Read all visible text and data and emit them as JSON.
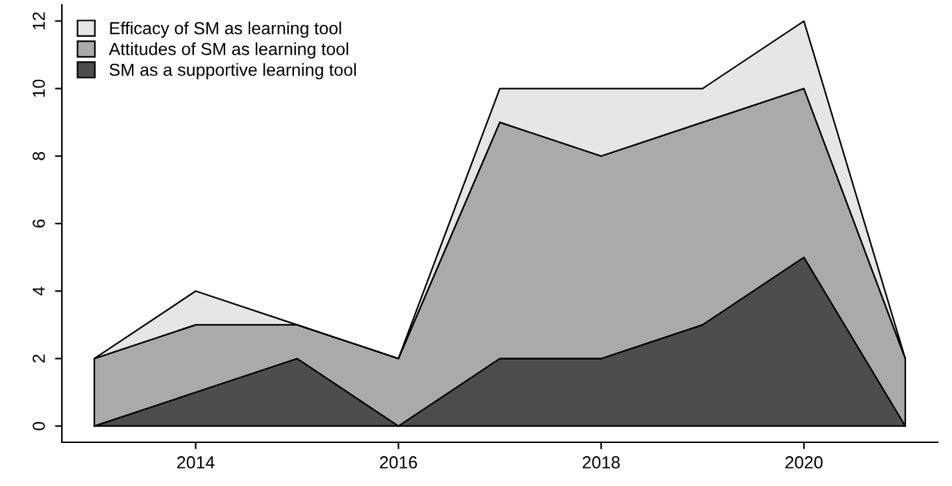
{
  "chart_data": {
    "type": "area",
    "stacked": true,
    "x": [
      2013,
      2014,
      2015,
      2016,
      2017,
      2018,
      2019,
      2020,
      2021
    ],
    "series": [
      {
        "name": "SM as a supportive learning tool",
        "color": "#4d4d4d",
        "values": [
          0,
          1,
          2,
          0,
          2,
          2,
          3,
          5,
          0
        ]
      },
      {
        "name": "Attitudes of SM as learning tool",
        "color": "#aaaaaa",
        "values": [
          2,
          2,
          1,
          2,
          7,
          6,
          6,
          5,
          2
        ]
      },
      {
        "name": "Efficacy of SM as learning tool",
        "color": "#e6e6e6",
        "values": [
          0,
          1,
          0,
          0,
          1,
          2,
          1,
          2,
          0
        ]
      }
    ],
    "xlim": [
      2012.68,
      2021.32
    ],
    "xticks": [
      2014,
      2016,
      2018,
      2020
    ],
    "ylim": [
      -0.48,
      12.48
    ],
    "yticks": [
      0,
      2,
      4,
      6,
      8,
      10,
      12
    ],
    "legend": "top left",
    "grid": false
  }
}
